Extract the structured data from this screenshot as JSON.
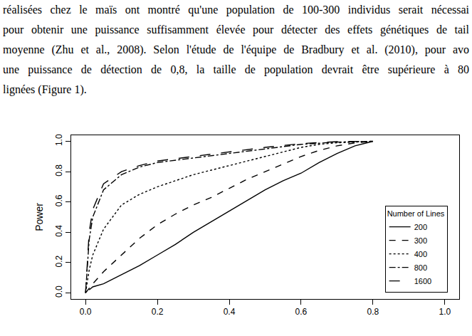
{
  "paragraph": [
    "réalisées chez le maïs ont montré qu'une population de 100-300 individus serait nécessai",
    "pour obtenir une puissance suffisamment élevée pour détecter des effets génétiques de tail",
    "moyenne (Zhu et al., 2008).  Selon l'étude de l'équipe de Bradbury et al. (2010), pour avo",
    "une puissance de détection de 0,8, la taille de population devrait être supérieure à 80",
    "lignées (Figure 1)."
  ],
  "chart_data": {
    "type": "line",
    "y_label": "Power",
    "legend_title": "Number of Lines",
    "legend": "bottom right",
    "grid": false,
    "xlim": [
      -0.04,
      1.04
    ],
    "ylim": [
      -0.04,
      1.04
    ],
    "xticks": [
      {
        "value": 0,
        "label": "0.0"
      },
      0.2,
      0.4,
      0.6,
      0.8,
      {
        "value": 1,
        "label": "1.0"
      }
    ],
    "yticks": [
      {
        "value": 0,
        "label": "0.0"
      },
      0.2,
      0.4,
      0.6,
      0.8,
      {
        "value": 1,
        "label": "1.0"
      }
    ],
    "series": [
      {
        "name": "200",
        "color": "#000000",
        "line_style": "solid",
        "x": [
          0.01,
          0.02,
          0.05,
          0.1,
          0.15,
          0.2,
          0.25,
          0.3,
          0.35,
          0.4,
          0.45,
          0.5,
          0.55,
          0.6,
          0.65,
          0.7,
          0.75,
          0.8
        ],
        "values": [
          0.02,
          0.04,
          0.06,
          0.12,
          0.18,
          0.25,
          0.32,
          0.4,
          0.47,
          0.54,
          0.61,
          0.68,
          0.74,
          0.79,
          0.86,
          0.92,
          0.97,
          1.0
        ]
      },
      {
        "name": "300",
        "color": "#000000",
        "line_style": "dash",
        "x": [
          0,
          0.02,
          0.05,
          0.1,
          0.15,
          0.2,
          0.25,
          0.3,
          0.35,
          0.4,
          0.45,
          0.5,
          0.55,
          0.6,
          0.65,
          0.7,
          0.75,
          0.8
        ],
        "values": [
          0,
          0.06,
          0.14,
          0.25,
          0.36,
          0.45,
          0.52,
          0.58,
          0.63,
          0.69,
          0.75,
          0.8,
          0.85,
          0.9,
          0.94,
          0.97,
          0.99,
          1.0
        ]
      },
      {
        "name": "400",
        "color": "#000000",
        "line_style": "dot",
        "x": [
          0,
          0.01,
          0.02,
          0.05,
          0.1,
          0.15,
          0.2,
          0.25,
          0.3,
          0.35,
          0.4,
          0.45,
          0.5,
          0.55,
          0.6,
          0.65,
          0.7,
          0.8
        ],
        "values": [
          0,
          0.15,
          0.25,
          0.42,
          0.58,
          0.65,
          0.7,
          0.74,
          0.78,
          0.81,
          0.84,
          0.87,
          0.9,
          0.93,
          0.96,
          0.98,
          0.99,
          1.0
        ]
      },
      {
        "name": "800",
        "color": "#000000",
        "line_style": "dashdot",
        "x": [
          0,
          0.01,
          0.02,
          0.05,
          0.1,
          0.15,
          0.2,
          0.3,
          0.4,
          0.5,
          0.6,
          0.7,
          0.8
        ],
        "values": [
          0,
          0.35,
          0.5,
          0.68,
          0.78,
          0.83,
          0.86,
          0.89,
          0.92,
          0.95,
          0.98,
          0.995,
          1.0
        ]
      },
      {
        "name": "1600",
        "color": "#000000",
        "line_style": "longdash",
        "x": [
          0,
          0.01,
          0.02,
          0.05,
          0.1,
          0.15,
          0.2,
          0.3,
          0.4,
          0.5,
          0.6,
          0.7,
          0.8
        ],
        "values": [
          0,
          0.4,
          0.55,
          0.72,
          0.8,
          0.84,
          0.87,
          0.9,
          0.93,
          0.96,
          0.985,
          0.998,
          1.0
        ]
      }
    ]
  }
}
